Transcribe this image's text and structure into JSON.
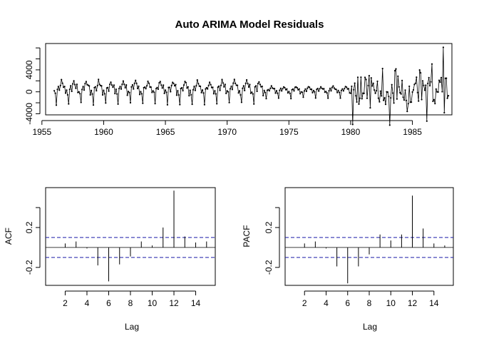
{
  "chart_data": [
    {
      "type": "line",
      "title": "Auto ARIMA Model Residuals",
      "xlabel": "",
      "ylabel": "",
      "xlim": [
        1955.3,
        1988.2
      ],
      "ylim": [
        -4200,
        8800
      ],
      "x_ticks": [
        1955,
        1960,
        1965,
        1970,
        1975,
        1980,
        1985
      ],
      "y_ticks": [
        -4000,
        0,
        4000
      ],
      "y_minor_ticks": [
        -2000,
        2000,
        6000,
        8000
      ],
      "x_start": 1956.0,
      "x_end": 1987.917,
      "frequency": 12,
      "cycle_pattern": [
        200,
        -300,
        -2200,
        600,
        1000,
        300,
        1400,
        2000,
        1500,
        900,
        1100,
        -400
      ],
      "segments": [
        {
          "from": 1956.0,
          "to": 1973.0,
          "amplitude": 1.0
        },
        {
          "from": 1973.0,
          "to": 1980.0,
          "amplitude": 0.5
        },
        {
          "from": 1980.0,
          "to": 1988.0,
          "amplitude": 2.6
        }
      ],
      "spike": {
        "x": 1987.5,
        "y": 8100
      }
    },
    {
      "type": "bar",
      "title": "",
      "xlabel": "Lag",
      "ylabel": "ACF",
      "xlim": [
        0.2,
        15.8
      ],
      "ylim": [
        -0.38,
        0.6
      ],
      "x_ticks": [
        2,
        4,
        6,
        8,
        10,
        12,
        14
      ],
      "y_ticks": [
        -0.2,
        0.2
      ],
      "y_minor_ticks": [
        0.4
      ],
      "confidence_band": 0.1,
      "lags": [
        1,
        2,
        3,
        4,
        5,
        6,
        7,
        8,
        9,
        10,
        11,
        12,
        13,
        14,
        15
      ],
      "values": [
        0.0,
        0.04,
        0.06,
        -0.01,
        -0.18,
        -0.34,
        -0.17,
        -0.09,
        0.06,
        0.02,
        0.2,
        0.57,
        0.11,
        0.05,
        0.06
      ]
    },
    {
      "type": "bar",
      "title": "",
      "xlabel": "Lag",
      "ylabel": "PACF",
      "xlim": [
        0.2,
        15.8
      ],
      "ylim": [
        -0.38,
        0.6
      ],
      "x_ticks": [
        2,
        4,
        6,
        8,
        10,
        12,
        14
      ],
      "y_ticks": [
        -0.2,
        0.2
      ],
      "y_minor_ticks": [
        0.4
      ],
      "confidence_band": 0.1,
      "lags": [
        1,
        2,
        3,
        4,
        5,
        6,
        7,
        8,
        9,
        10,
        11,
        12,
        13,
        14,
        15
      ],
      "values": [
        0.0,
        0.04,
        0.06,
        -0.01,
        -0.19,
        -0.36,
        -0.19,
        -0.07,
        0.13,
        0.07,
        0.13,
        0.52,
        0.19,
        0.04,
        0.02
      ]
    }
  ]
}
